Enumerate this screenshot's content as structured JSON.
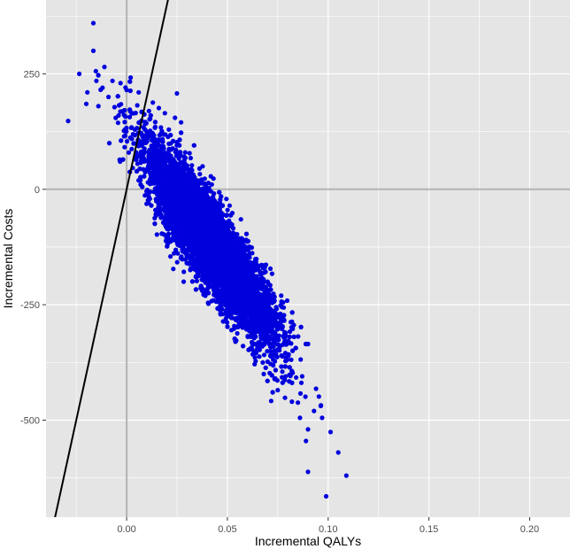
{
  "chart_data": {
    "type": "scatter",
    "title": "",
    "xlabel": "Incremental QALYs",
    "ylabel": "Incremental Costs",
    "xlim": [
      -0.04,
      0.22
    ],
    "ylim": [
      -710,
      410
    ],
    "x_ticks": [
      0.0,
      0.05,
      0.1,
      0.15,
      0.2
    ],
    "x_tick_labels": [
      "0.00",
      "0.05",
      "0.10",
      "0.15",
      "0.20"
    ],
    "y_ticks": [
      250,
      0,
      -250,
      -500
    ],
    "y_tick_labels": [
      "250",
      "0",
      "-250",
      "-500"
    ],
    "grid": true,
    "panel_background": "#e5e5e5",
    "grid_color": "#ffffff",
    "point_color": "#0000dd",
    "reference_line_color": "#b3b3b3",
    "wtp_line_color": "#000000",
    "reference_lines": {
      "x": 0,
      "y": 0
    },
    "threshold_line": {
      "slope": 20000,
      "intercept": 0
    },
    "cloud": {
      "n_points": 9000,
      "center": [
        0.042,
        -120
      ],
      "x_range": [
        -0.03,
        0.11
      ],
      "y_range": [
        -690,
        360
      ],
      "correlation": "strong negative"
    },
    "points": [
      [
        -0.0165,
        360
      ],
      [
        -0.0165,
        300
      ],
      [
        -0.0235,
        250
      ],
      [
        -0.029,
        148
      ],
      [
        -0.011,
        265
      ],
      [
        -0.015,
        235
      ],
      [
        -0.012,
        220
      ],
      [
        -0.0195,
        210
      ],
      [
        -0.007,
        235
      ],
      [
        -0.009,
        200
      ],
      [
        -0.014,
        180
      ],
      [
        -0.02,
        185
      ],
      [
        -0.006,
        178
      ],
      [
        -0.004,
        160
      ],
      [
        0.0,
        215
      ],
      [
        -0.003,
        230
      ],
      [
        0.002,
        242
      ],
      [
        0.006,
        210
      ],
      [
        0.013,
        188
      ],
      [
        0.016,
        176
      ],
      [
        0.019,
        165
      ],
      [
        0.024,
        155
      ],
      [
        0.027,
        145
      ],
      [
        0.093,
        -480
      ],
      [
        0.097,
        -495
      ],
      [
        0.086,
        -495
      ],
      [
        0.09,
        -520
      ],
      [
        0.089,
        -545
      ],
      [
        0.094,
        -432
      ],
      [
        0.082,
        -460
      ],
      [
        0.075,
        -435
      ],
      [
        0.105,
        -570
      ],
      [
        0.109,
        -620
      ],
      [
        0.099,
        -665
      ],
      [
        0.09,
        -612
      ],
      [
        0.071,
        -398
      ],
      [
        0.064,
        -372
      ],
      [
        0.054,
        -330
      ],
      [
        0.052,
        -305
      ],
      [
        0.085,
        -462
      ]
    ]
  }
}
